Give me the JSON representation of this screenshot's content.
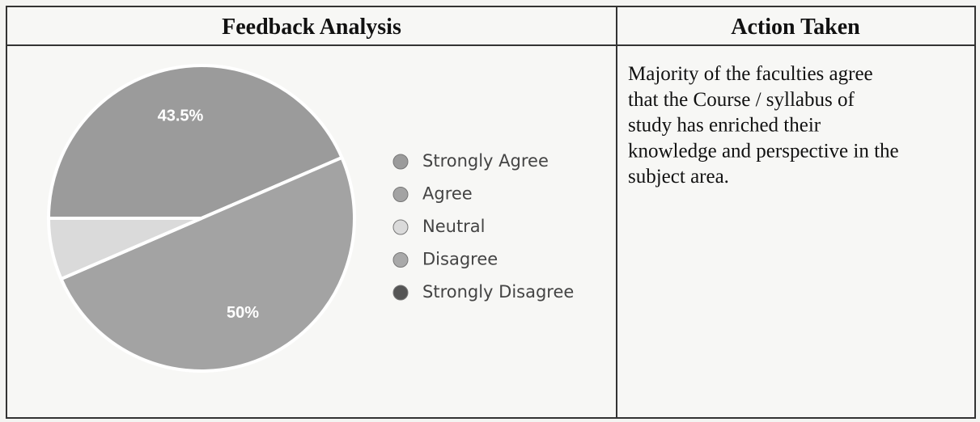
{
  "table": {
    "headers": [
      "Feedback Analysis",
      "Action Taken"
    ],
    "action_lines": [
      "Majority of the faculties agree",
      "that the Course / syllabus of",
      "study has enriched their",
      "knowledge and perspective in the",
      "subject area."
    ]
  },
  "chart_data": {
    "type": "pie",
    "categories": [
      "Strongly Agree",
      "Agree",
      "Neutral",
      "Disagree",
      "Strongly Disagree"
    ],
    "values": [
      43.5,
      50,
      6.5,
      0,
      0
    ],
    "value_labels": [
      "43.5%",
      "50%",
      null,
      null,
      null
    ],
    "colors": [
      "#9b9b9b",
      "#a3a3a3",
      "#dadada",
      "#a9a9a9",
      "#555555"
    ],
    "legend": "right"
  }
}
